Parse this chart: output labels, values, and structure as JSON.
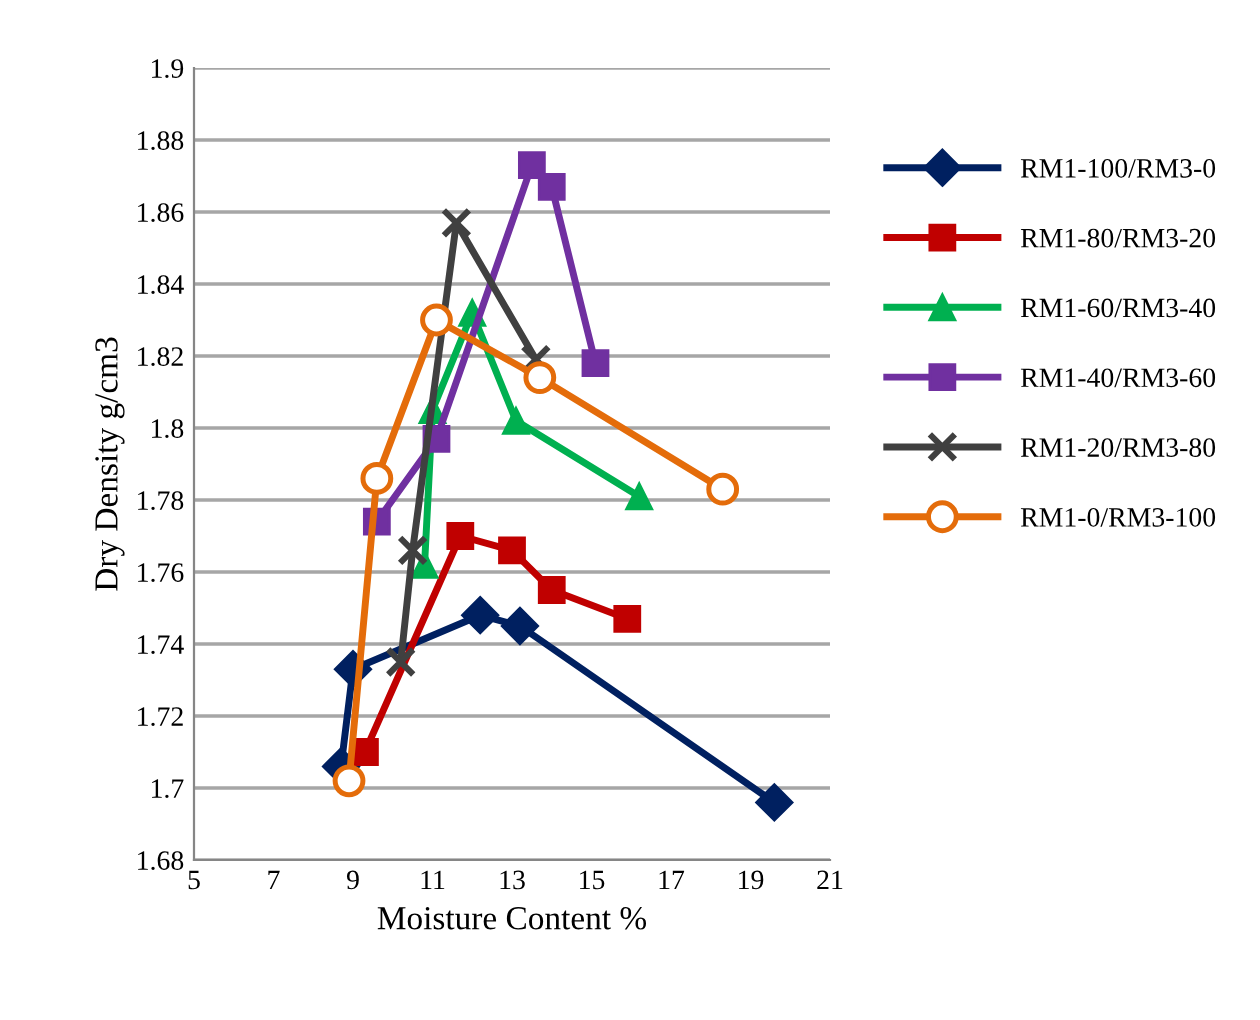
{
  "chart_data": {
    "type": "line",
    "xlabel": "Moisture Content %",
    "ylabel": "Dry Density g/cm3",
    "xlim": [
      5,
      21
    ],
    "xticks": [
      5,
      7,
      9,
      11,
      13,
      15,
      17,
      19,
      21
    ],
    "ylim": [
      1.68,
      1.9
    ],
    "yticks": [
      {
        "value": 1.68,
        "label": "1.68"
      },
      {
        "value": 1.7,
        "label": "1.7"
      },
      {
        "value": 1.72,
        "label": "1.72"
      },
      {
        "value": 1.74,
        "label": "1.74"
      },
      {
        "value": 1.76,
        "label": "1.76"
      },
      {
        "value": 1.78,
        "label": "1.78"
      },
      {
        "value": 1.8,
        "label": "1.8"
      },
      {
        "value": 1.82,
        "label": "1.82"
      },
      {
        "value": 1.84,
        "label": "1.84"
      },
      {
        "value": 1.86,
        "label": "1.86"
      },
      {
        "value": 1.88,
        "label": "1.88"
      },
      {
        "value": 1.9,
        "label": "1.9"
      }
    ],
    "grid": "y",
    "legend": "right",
    "line_style": "solid",
    "series": [
      {
        "name": "RM1-100/RM3-0",
        "color": "#002060",
        "marker": "diamond",
        "x": [
          8.7,
          9.0,
          12.2,
          13.2,
          19.6
        ],
        "values": [
          1.706,
          1.733,
          1.748,
          1.745,
          1.696
        ]
      },
      {
        "name": "RM1-80/RM3-20",
        "color": "#c00000",
        "marker": "square",
        "x": [
          9.3,
          11.7,
          13.0,
          14.0,
          15.9
        ],
        "values": [
          1.71,
          1.77,
          1.766,
          1.755,
          1.747
        ]
      },
      {
        "name": "RM1-60/RM3-40",
        "color": "#00b050",
        "marker": "triangle",
        "x": [
          10.8,
          11.0,
          12.0,
          13.1,
          16.2
        ],
        "values": [
          1.762,
          1.805,
          1.832,
          1.802,
          1.781
        ]
      },
      {
        "name": "RM1-40/RM3-60",
        "color": "#7030a0",
        "marker": "square",
        "x": [
          9.6,
          11.1,
          13.5,
          14.0,
          15.1
        ],
        "values": [
          1.774,
          1.797,
          1.873,
          1.867,
          1.818
        ]
      },
      {
        "name": "RM1-20/RM3-80",
        "color": "#404040",
        "marker": "cross",
        "x": [
          10.2,
          10.5,
          11.6,
          13.6
        ],
        "values": [
          1.735,
          1.766,
          1.857,
          1.819
        ]
      },
      {
        "name": "RM1-0/RM3-100",
        "color": "#e46c0a",
        "marker": "circle",
        "x": [
          8.9,
          9.6,
          11.1,
          13.7,
          18.3
        ],
        "values": [
          1.702,
          1.786,
          1.83,
          1.814,
          1.783
        ]
      }
    ]
  }
}
